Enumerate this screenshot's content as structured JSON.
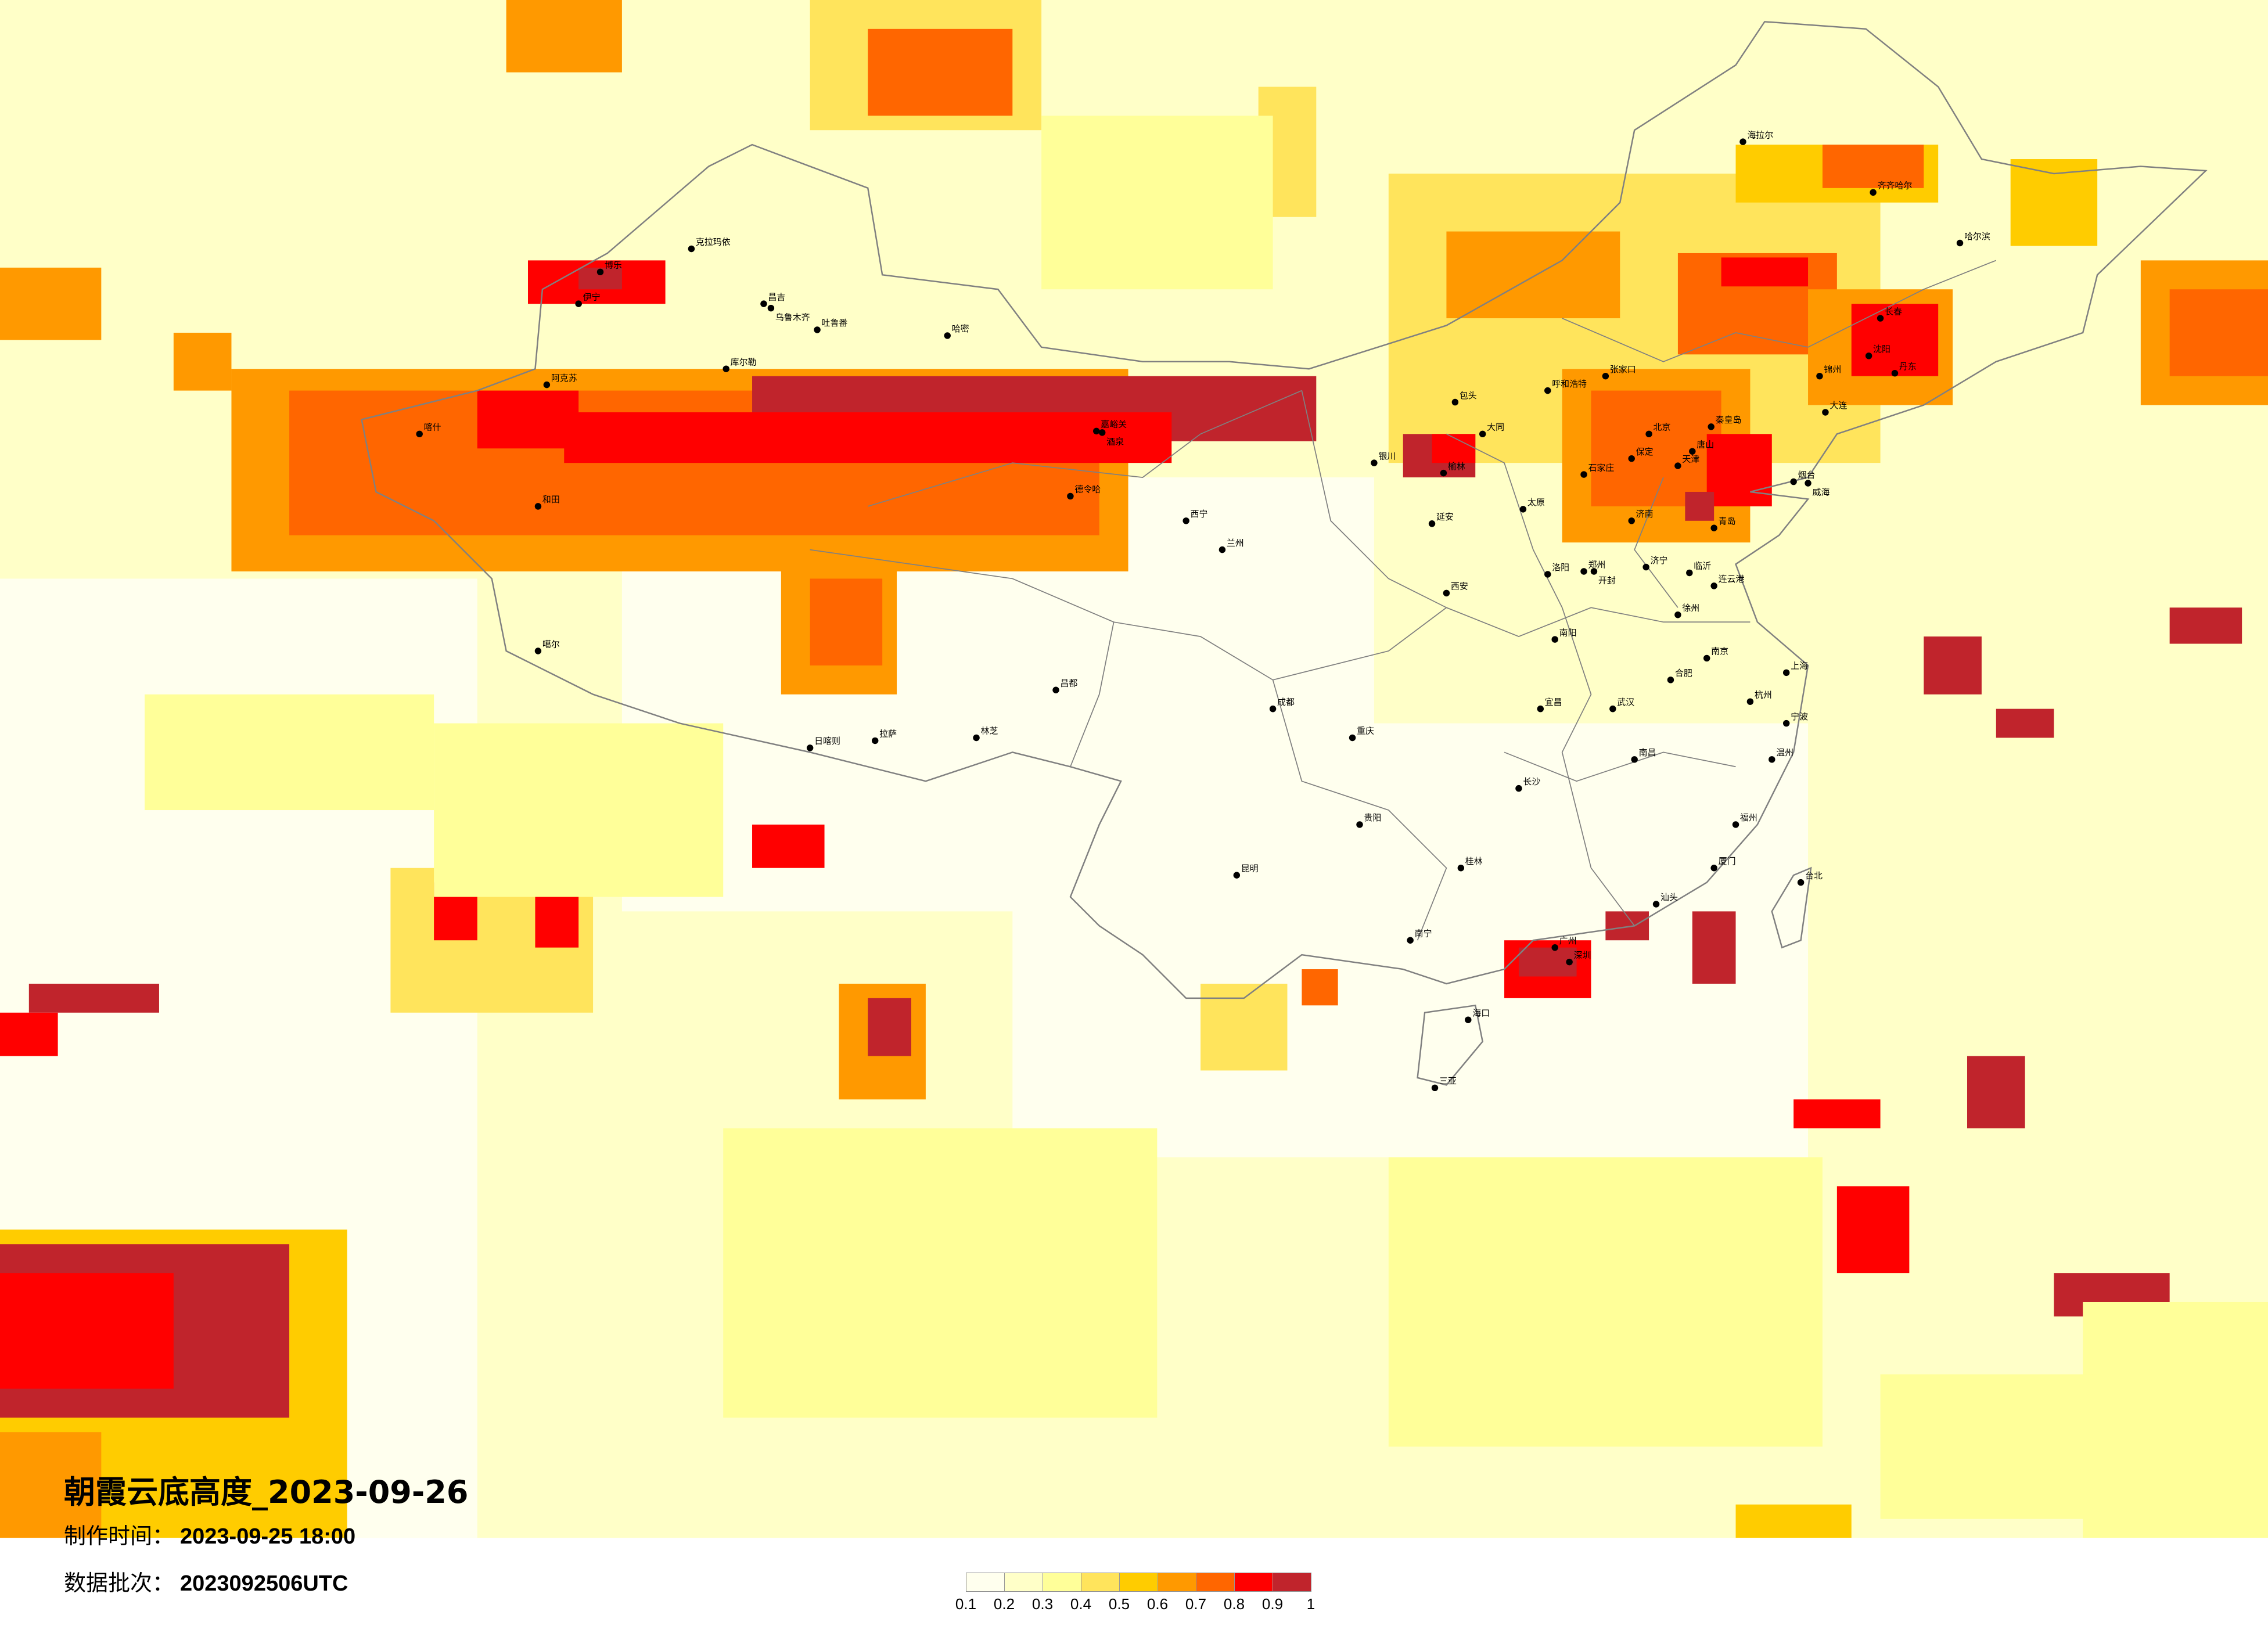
{
  "title": "朝霞云底高度_2023-09-26",
  "made_time": {
    "label": "制作时间：",
    "value": "2023-09-25 18:00"
  },
  "data_batch": {
    "label": "数据批次：",
    "value": "2023092506UTC"
  },
  "legend": {
    "ticks": [
      "0.1",
      "0.2",
      "0.3",
      "0.4",
      "0.5",
      "0.6",
      "0.7",
      "0.8",
      "0.9",
      "1"
    ],
    "colors": [
      "#ffffee",
      "#ffffc8",
      "#ffff99",
      "#ffe45c",
      "#ffcc00",
      "#ff9900",
      "#ff6600",
      "#ff0000",
      "#c0242c"
    ]
  },
  "map": {
    "background_color": "#ffffee",
    "border_color": "#808080",
    "cities": [
      "克拉玛依",
      "博乐",
      "伊宁",
      "昌吉",
      "乌鲁木齐",
      "吐鲁番",
      "哈密",
      "库尔勒",
      "阿克苏",
      "喀什",
      "和田",
      "嘉峪关",
      "酒泉",
      "德令哈",
      "西宁",
      "兰州",
      "拉萨",
      "日喀则",
      "林芝",
      "噶尔",
      "昌都",
      "成都",
      "重庆",
      "昆明",
      "贵阳",
      "南宁",
      "广州",
      "深圳",
      "海口",
      "三亚",
      "长沙",
      "武汉",
      "南昌",
      "福州",
      "台北",
      "上海",
      "杭州",
      "南京",
      "合肥",
      "郑州",
      "西安",
      "太原",
      "石家庄",
      "北京",
      "天津",
      "济南",
      "青岛",
      "沈阳",
      "长春",
      "哈尔滨",
      "呼和浩特",
      "包头",
      "银川",
      "齐齐哈尔",
      "海拉尔",
      "大连",
      "延安",
      "榆林",
      "大同",
      "张家口",
      "唐山",
      "秦皇岛",
      "保定",
      "烟台",
      "威海",
      "洛阳",
      "开封",
      "济宁",
      "临沂",
      "连云港",
      "徐州",
      "南阳",
      "宜昌",
      "桂林",
      "厦门",
      "汕头",
      "温州",
      "宁波",
      "丹东",
      "锦州"
    ]
  }
}
